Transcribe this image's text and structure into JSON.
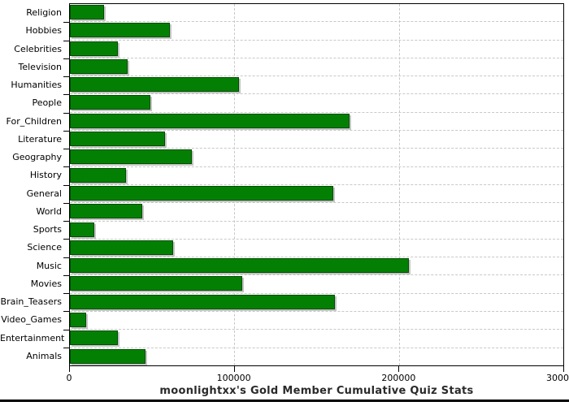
{
  "title": "moonlightxx's Gold Member Cumulative Quiz Stats",
  "colors": {
    "bar_fill": "#038003",
    "bar_border": "#004d00",
    "bar_shadow": "#c4c4c4",
    "grid": "#c8c8c8",
    "axis": "#000000",
    "background": "#ffffff",
    "title_text": "#2a2a2a"
  },
  "chart_data": {
    "type": "bar",
    "orientation": "horizontal",
    "title": "moonlightxx's Gold Member Cumulative Quiz Stats",
    "xlabel": "",
    "ylabel": "",
    "xlim": [
      0,
      300000
    ],
    "x_ticks": [
      0,
      100000,
      200000,
      300000
    ],
    "x_tick_labels": [
      "0",
      "100000",
      "200000",
      "300000"
    ],
    "grid": "dashed",
    "legend": "none",
    "categories": [
      "Religion",
      "Hobbies",
      "Celebrities",
      "Television",
      "Humanities",
      "People",
      "For_Children",
      "Literature",
      "Geography",
      "History",
      "General",
      "World",
      "Sports",
      "Science",
      "Music",
      "Movies",
      "Brain_Teasers",
      "Video_Games",
      "Entertainment",
      "Animals"
    ],
    "values": [
      21000,
      61000,
      29000,
      35000,
      103000,
      49000,
      170000,
      58000,
      74000,
      34000,
      160000,
      44000,
      15000,
      63000,
      206000,
      105000,
      161000,
      10000,
      29000,
      46000
    ]
  }
}
